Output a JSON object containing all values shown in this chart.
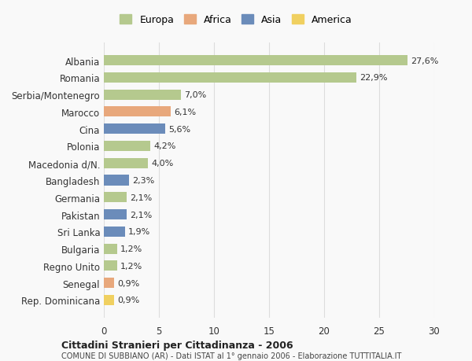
{
  "categories": [
    "Rep. Dominicana",
    "Senegal",
    "Regno Unito",
    "Bulgaria",
    "Sri Lanka",
    "Pakistan",
    "Germania",
    "Bangladesh",
    "Macedonia d/N.",
    "Polonia",
    "Cina",
    "Marocco",
    "Serbia/Montenegro",
    "Romania",
    "Albania"
  ],
  "values": [
    0.9,
    0.9,
    1.2,
    1.2,
    1.9,
    2.1,
    2.1,
    2.3,
    4.0,
    4.2,
    5.6,
    6.1,
    7.0,
    22.9,
    27.6
  ],
  "labels": [
    "0,9%",
    "0,9%",
    "1,2%",
    "1,2%",
    "1,9%",
    "2,1%",
    "2,1%",
    "2,3%",
    "4,0%",
    "4,2%",
    "5,6%",
    "6,1%",
    "7,0%",
    "22,9%",
    "27,6%"
  ],
  "continents": [
    "America",
    "Africa",
    "Europa",
    "Europa",
    "Asia",
    "Asia",
    "Europa",
    "Asia",
    "Europa",
    "Europa",
    "Asia",
    "Africa",
    "Europa",
    "Europa",
    "Europa"
  ],
  "continent_colors": {
    "Europa": "#b5c98e",
    "Africa": "#e8a87c",
    "Asia": "#6b8cba",
    "America": "#f0d060"
  },
  "legend_labels": [
    "Europa",
    "Africa",
    "Asia",
    "America"
  ],
  "legend_colors": [
    "#b5c98e",
    "#e8a87c",
    "#6b8cba",
    "#f0d060"
  ],
  "title_bold": "Cittadini Stranieri per Cittadinanza - 2006",
  "subtitle": "COMUNE DI SUBBIANO (AR) - Dati ISTAT al 1° gennaio 2006 - Elaborazione TUTTITALIA.IT",
  "xlim": [
    0,
    30
  ],
  "xticks": [
    0,
    5,
    10,
    15,
    20,
    25,
    30
  ],
  "background_color": "#f9f9f9",
  "grid_color": "#dddddd",
  "bar_height": 0.6
}
